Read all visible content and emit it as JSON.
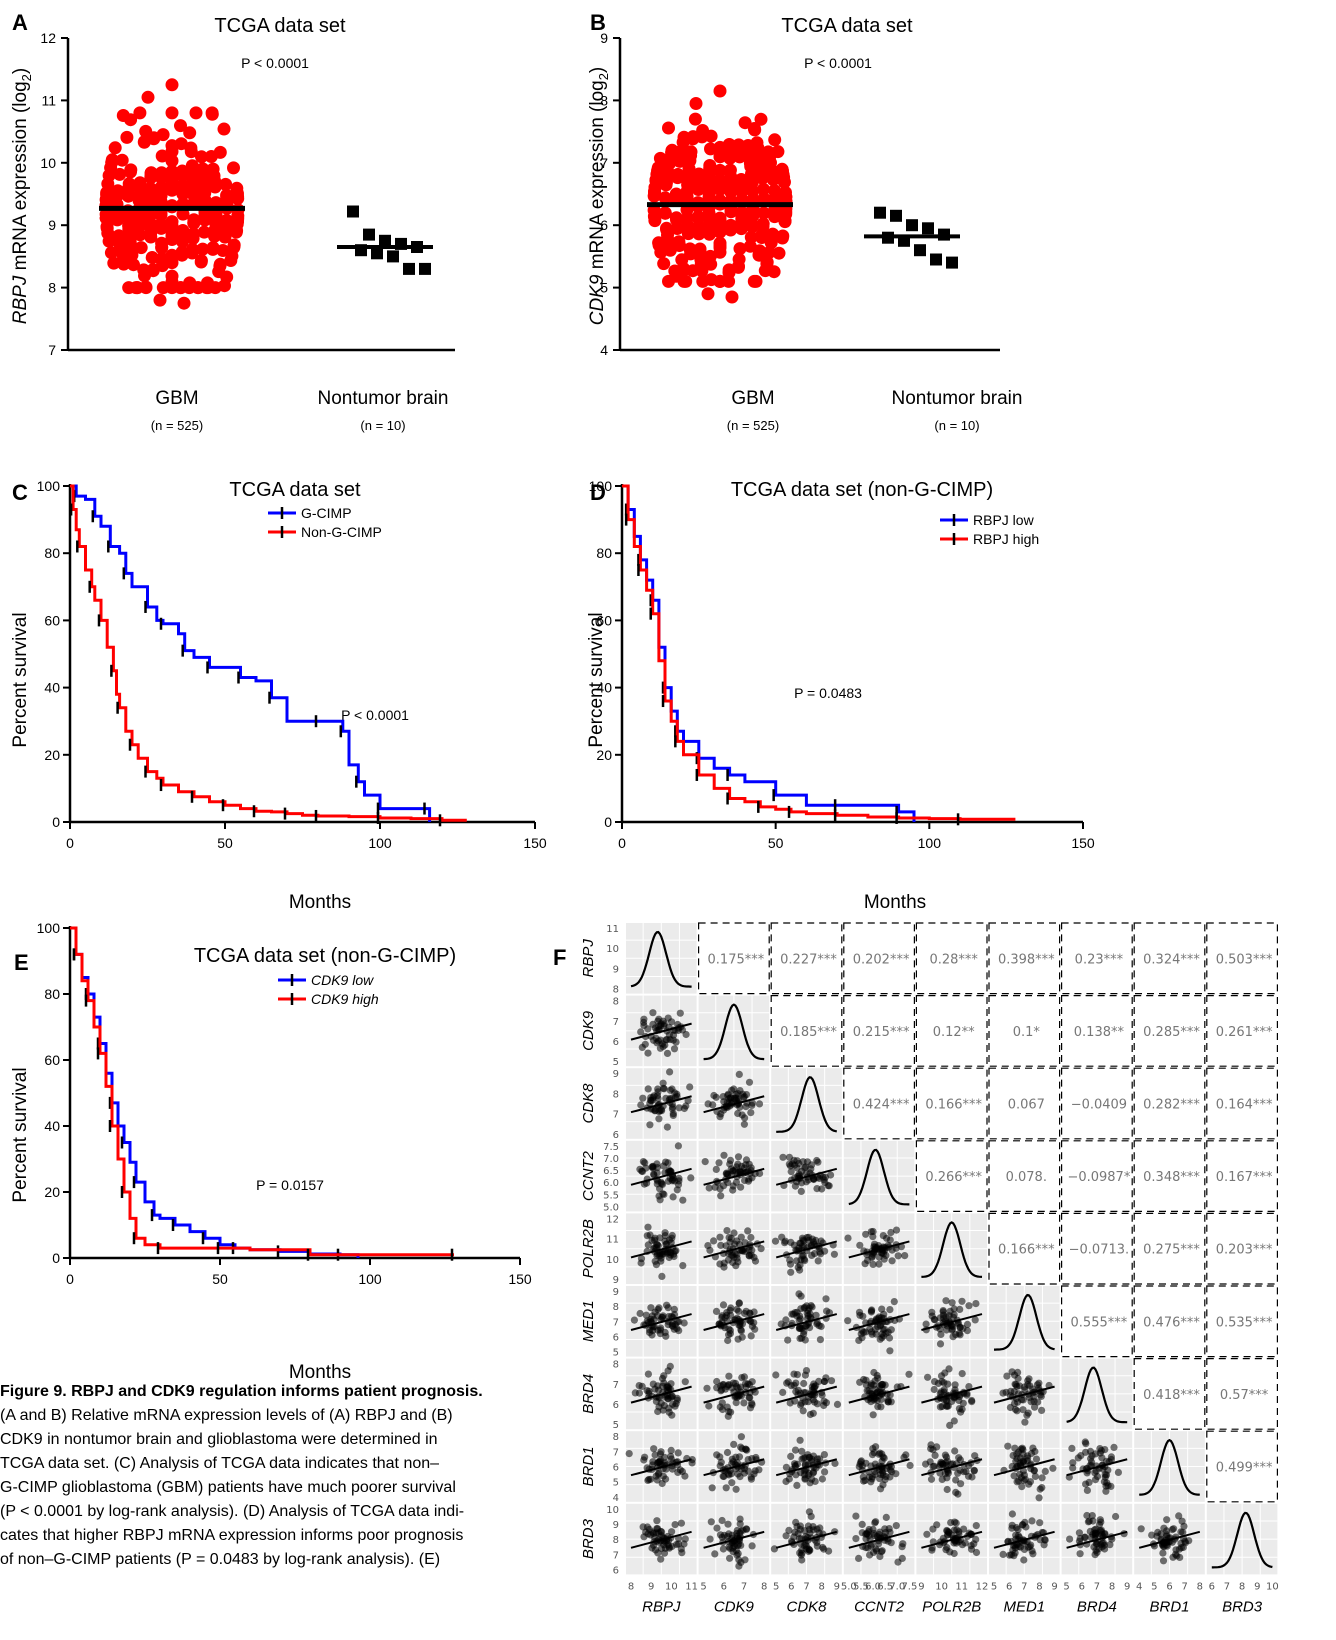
{
  "panels": {
    "A": {
      "label": "A",
      "title": "TCGA data set",
      "pvalue": "P < 0.0001",
      "ylabel_gene": "RBPJ",
      "ylabel_rest": " mRNA expression (log",
      "ylabel_sub": "2",
      "ylabel_end": ")",
      "yticks": [
        "7",
        "8",
        "9",
        "10",
        "11",
        "12"
      ],
      "cat1": "GBM",
      "n1": "(n = 525)",
      "cat2": "Nontumor brain",
      "n2": "(n = 10)"
    },
    "B": {
      "label": "B",
      "title": "TCGA data set",
      "pvalue": "P < 0.0001",
      "ylabel_gene": "CDK9",
      "ylabel_rest": " mRNA expression (log",
      "ylabel_sub": "2",
      "ylabel_end": ")",
      "yticks": [
        "4",
        "5",
        "6",
        "7",
        "8",
        "9"
      ],
      "cat1": "GBM",
      "n1": "(n = 525)",
      "cat2": "Nontumor brain",
      "n2": "(n = 10)"
    },
    "C": {
      "label": "C",
      "title": "TCGA data set",
      "pvalue": "P < 0.0001",
      "ylabel": "Percent survival",
      "xlabel": "Months",
      "legend": [
        "G-CIMP",
        "Non-G-CIMP"
      ],
      "xticks": [
        "0",
        "50",
        "100",
        "150"
      ],
      "yticks": [
        "0",
        "20",
        "40",
        "60",
        "80",
        "100"
      ]
    },
    "D": {
      "label": "D",
      "title": "TCGA data set (non-G-CIMP)",
      "pvalue": "P = 0.0483",
      "ylabel": "Percent survival",
      "xlabel": "Months",
      "legend": [
        "RBPJ low",
        "RBPJ high"
      ],
      "xticks": [
        "0",
        "50",
        "100",
        "150"
      ],
      "yticks": [
        "0",
        "20",
        "40",
        "60",
        "80",
        "100"
      ]
    },
    "E": {
      "label": "E",
      "title": "TCGA data set (non-G-CIMP)",
      "pvalue": "P = 0.0157",
      "ylabel": "Percent survival",
      "xlabel": "Months",
      "legend": [
        "CDK9 low",
        "CDK9 high"
      ],
      "xticks": [
        "0",
        "50",
        "100",
        "150"
      ],
      "yticks": [
        "0",
        "20",
        "40",
        "60",
        "80",
        "100"
      ]
    },
    "F": {
      "label": "F"
    }
  },
  "matrix": {
    "genes": [
      "RBPJ",
      "CDK9",
      "CDK8",
      "CCNT2",
      "POLR2B",
      "MED1",
      "BRD4",
      "BRD1",
      "BRD3"
    ],
    "correlations": [
      [
        "",
        "0.175***",
        "0.227***",
        "0.202***",
        "0.28***",
        "0.398***",
        "0.23***",
        "0.324***",
        "0.503***"
      ],
      [
        "",
        "",
        "0.185***",
        "0.215***",
        "0.12**",
        "0.1*",
        "0.138**",
        "0.285***",
        "0.261***"
      ],
      [
        "",
        "",
        "",
        "0.424***",
        "0.166***",
        "0.067",
        "−0.0409",
        "0.282***",
        "0.164***"
      ],
      [
        "",
        "",
        "",
        "",
        "0.266***",
        "0.078.",
        "−0.0987*",
        "0.348***",
        "0.167***"
      ],
      [
        "",
        "",
        "",
        "",
        "",
        "0.166***",
        "−0.0713.",
        "0.275***",
        "0.203***"
      ],
      [
        "",
        "",
        "",
        "",
        "",
        "",
        "0.555***",
        "0.476***",
        "0.535***"
      ],
      [
        "",
        "",
        "",
        "",
        "",
        "",
        "",
        "0.418***",
        "0.57***"
      ],
      [
        "",
        "",
        "",
        "",
        "",
        "",
        "",
        "",
        "0.499***"
      ],
      [
        "",
        "",
        "",
        "",
        "",
        "",
        "",
        "",
        ""
      ]
    ],
    "row_ticks": [
      [
        "8",
        "9",
        "10",
        "11"
      ],
      [
        "5",
        "6",
        "7",
        "8"
      ],
      [
        "6",
        "7",
        "8",
        "9"
      ],
      [
        "5.0",
        "5.5",
        "6.0",
        "6.5",
        "7.0",
        "7.5"
      ],
      [
        "9",
        "10",
        "11",
        "12"
      ],
      [
        "5",
        "6",
        "7",
        "8",
        "9"
      ],
      [
        "5",
        "6",
        "7",
        "8"
      ],
      [
        "4",
        "5",
        "6",
        "7",
        "8"
      ],
      [
        "6",
        "7",
        "8",
        "9",
        "10"
      ]
    ],
    "col_ticks": [
      [
        "8",
        "9",
        "10",
        "11"
      ],
      [
        "5",
        "6",
        "7",
        "8"
      ],
      [
        "5",
        "6",
        "7",
        "8",
        "9"
      ],
      [
        "5.0",
        "5.5",
        "6.0",
        "6.5",
        "7.0",
        "7.5"
      ],
      [
        "9",
        "10",
        "11",
        "12"
      ],
      [
        "5",
        "6",
        "7",
        "8",
        "9"
      ],
      [
        "5",
        "6",
        "7",
        "8",
        "9"
      ],
      [
        "4",
        "5",
        "6",
        "7",
        "8"
      ],
      [
        "6",
        "7",
        "8",
        "9",
        "10"
      ]
    ]
  },
  "chart_data": [
    {
      "panel": "A",
      "type": "scatter",
      "title": "TCGA data set",
      "categories": [
        "GBM",
        "Nontumor brain"
      ],
      "ylim": [
        7,
        12
      ],
      "series": [
        {
          "name": "GBM",
          "n": 525,
          "mean": 9.27,
          "min": 7.75,
          "max": 11.25
        },
        {
          "name": "Nontumor brain",
          "n": 10,
          "mean": 8.65,
          "values": [
            9.22,
            8.85,
            8.75,
            8.7,
            8.65,
            8.6,
            8.55,
            8.5,
            8.3,
            8.3
          ]
        }
      ]
    },
    {
      "panel": "B",
      "type": "scatter",
      "title": "TCGA data set",
      "categories": [
        "GBM",
        "Nontumor brain"
      ],
      "ylim": [
        4,
        9
      ],
      "series": [
        {
          "name": "GBM",
          "n": 525,
          "mean": 6.33,
          "min": 4.85,
          "max": 8.15
        },
        {
          "name": "Nontumor brain",
          "n": 10,
          "mean": 5.82,
          "values": [
            6.2,
            6.15,
            6.0,
            5.95,
            5.85,
            5.8,
            5.75,
            5.6,
            5.45,
            5.4
          ]
        }
      ]
    },
    {
      "panel": "C",
      "type": "line",
      "title": "TCGA data set",
      "xlabel": "Months",
      "ylabel": "Percent survival",
      "xlim": [
        0,
        150
      ],
      "ylim": [
        0,
        100
      ],
      "series": [
        {
          "name": "G-CIMP",
          "x": [
            0,
            2,
            5,
            8,
            10,
            13,
            16,
            18,
            20,
            25,
            28,
            30,
            35,
            37,
            40,
            45,
            50,
            55,
            60,
            65,
            70,
            80,
            85,
            88,
            90,
            93,
            95,
            100,
            105,
            115,
            116
          ],
          "y": [
            100,
            97,
            96,
            91,
            88,
            82,
            80,
            74,
            70,
            64,
            60,
            59,
            56,
            51,
            49,
            46,
            46,
            43,
            42,
            37,
            30,
            30,
            30,
            27,
            17,
            12,
            8,
            4,
            4,
            4,
            0
          ]
        },
        {
          "name": "Non-G-CIMP",
          "x": [
            0,
            1,
            2,
            3,
            5,
            7,
            8,
            10,
            12,
            14,
            15,
            16,
            18,
            20,
            22,
            25,
            28,
            30,
            35,
            40,
            45,
            50,
            55,
            60,
            65,
            70,
            75,
            80,
            90,
            100,
            110,
            120,
            128
          ],
          "y": [
            100,
            93,
            87,
            82,
            75,
            70,
            66,
            60,
            52,
            45,
            38,
            34,
            27,
            23,
            19,
            15,
            13,
            11,
            9,
            7.5,
            6,
            5,
            4,
            3.2,
            3,
            2.5,
            2,
            1.8,
            1.6,
            1.2,
            1,
            0.5,
            0.5
          ]
        }
      ]
    },
    {
      "panel": "D",
      "type": "line",
      "title": "TCGA data set (non-G-CIMP)",
      "xlabel": "Months",
      "ylabel": "Percent survival",
      "xlim": [
        0,
        150
      ],
      "ylim": [
        0,
        100
      ],
      "series": [
        {
          "name": "RBPJ low",
          "x": [
            0,
            2,
            4,
            6,
            8,
            10,
            12,
            14,
            16,
            18,
            20,
            25,
            30,
            35,
            40,
            50,
            60,
            70,
            80,
            90,
            95
          ],
          "y": [
            100,
            93,
            85,
            78,
            72,
            66,
            52,
            40,
            33,
            27,
            24,
            19,
            16,
            14,
            12,
            8,
            5,
            5,
            5,
            3,
            0
          ]
        },
        {
          "name": "RBPJ high",
          "x": [
            0,
            2,
            4,
            6,
            8,
            10,
            12,
            14,
            16,
            18,
            20,
            25,
            30,
            35,
            40,
            45,
            50,
            55,
            60,
            70,
            80,
            90,
            100,
            110,
            128
          ],
          "y": [
            100,
            90,
            82,
            75,
            69,
            62,
            48,
            36,
            30,
            24,
            20,
            14,
            10,
            7,
            6,
            4.5,
            3.8,
            3,
            2.5,
            2,
            1.5,
            1.2,
            1,
            0.8,
            0.8
          ]
        }
      ]
    },
    {
      "panel": "E",
      "type": "line",
      "title": "TCGA data set (non-G-CIMP)",
      "xlabel": "Months",
      "ylabel": "Percent survival",
      "xlim": [
        0,
        150
      ],
      "ylim": [
        0,
        100
      ],
      "series": [
        {
          "name": "CDK9 low",
          "x": [
            0,
            2,
            4,
            6,
            8,
            10,
            12,
            14,
            16,
            18,
            20,
            22,
            25,
            28,
            30,
            35,
            40,
            45,
            50,
            55,
            60,
            70,
            80,
            90,
            96
          ],
          "y": [
            100,
            92,
            85,
            80,
            73,
            65,
            56,
            47,
            40,
            35,
            29,
            23,
            17,
            13,
            12,
            10,
            8,
            6,
            4,
            3,
            2.5,
            2,
            1.2,
            1,
            0
          ]
        },
        {
          "name": "CDK9 high",
          "x": [
            0,
            2,
            4,
            6,
            8,
            10,
            12,
            14,
            16,
            18,
            20,
            22,
            25,
            30,
            40,
            50,
            60,
            80,
            100,
            128
          ],
          "y": [
            100,
            92,
            84,
            78,
            70,
            62,
            52,
            40,
            30,
            20,
            12,
            6,
            4,
            3,
            3,
            3,
            2.5,
            1,
            1,
            1
          ]
        }
      ]
    }
  ],
  "caption": {
    "title": "Figure 9. RBPJ and CDK9 regulation informs patient prognosis.",
    "lines": [
      "(A and B) Relative mRNA expression levels of (A) RBPJ and (B)",
      "CDK9 in nontumor brain and glioblastoma were determined in",
      "TCGA data set. (C) Analysis of TCGA data indicates that non–",
      "G-CIMP glioblastoma (GBM) patients have much poorer survival",
      "(P < 0.0001 by log-rank analysis). (D) Analysis of TCGA data indi-",
      "cates that higher RBPJ mRNA expression informs poor prognosis",
      "of non–G-CIMP patients (P = 0.0483 by log-rank analysis). (E)"
    ]
  },
  "colors": {
    "red": "#ff0000",
    "blue": "#0000ff",
    "black": "#000000",
    "matrix_bg": "#ebebeb",
    "corr_text": "#777777"
  }
}
